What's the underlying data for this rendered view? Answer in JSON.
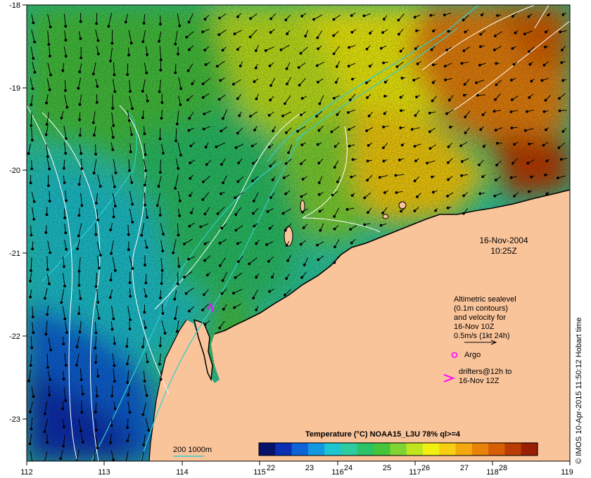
{
  "map": {
    "date_label": "16-Nov-2004",
    "time_label": "10:25Z",
    "lon_ticks": [
      "112",
      "113",
      "114",
      "115",
      "116",
      "117",
      "118",
      "119"
    ],
    "lat_ticks": [
      "-18",
      "-19",
      "-20",
      "-21",
      "-22",
      "-23"
    ],
    "legend": {
      "lines": [
        "Altimetric sealevel",
        "(0.1m contours)",
        "and velocity for",
        "16-Nov 10Z",
        "0.5m/s (1kt 24h)"
      ],
      "argo_label": "Argo",
      "drifters_lines": [
        "drifters@12h to",
        "16-Nov 12Z"
      ]
    },
    "isobath_label": "200  1000m",
    "colorbar": {
      "title": "Temperature (°C) NOAA15_L3U 78% ql>=4",
      "ticks": [
        "22",
        "23",
        "24",
        "25",
        "26",
        "27",
        "28"
      ],
      "colors": [
        "#08126b",
        "#0a2fb0",
        "#0f63d8",
        "#1598e0",
        "#1fc4cf",
        "#2ecba0",
        "#2cc266",
        "#45c43c",
        "#7fd431",
        "#c0e51f",
        "#f2f010",
        "#f7cf10",
        "#f3a90d",
        "#e98208",
        "#d65e06",
        "#bb3b05",
        "#9a1d04"
      ]
    },
    "credit": "© IMOS 10-Apr-2015 11:50:12 Hobart time",
    "colors": {
      "land": "#fac49a",
      "isobath": "#33cccc",
      "contour": "#ffffff",
      "argo": "#ff00ff",
      "drifter": "#ff00ff"
    }
  }
}
